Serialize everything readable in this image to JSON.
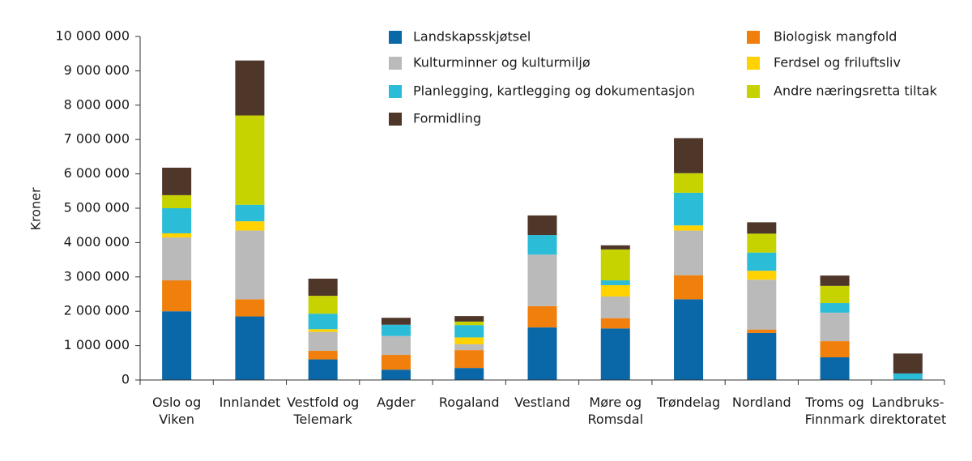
{
  "chart_data": {
    "type": "stacked_bar",
    "y_label": "Kroner",
    "categories": [
      "Oslo og\nViken",
      "Innlandet",
      "Vestfold og\nTelemark",
      "Agder",
      "Rogaland",
      "Vestland",
      "Møre og\nRomsdal",
      "Trøndelag",
      "Nordland",
      "Troms og\nFinnmark",
      "Landbruks-\ndirektoratet"
    ],
    "series": [
      {
        "name": "Landskapsskjøtsel",
        "color": "#0a68a8",
        "values": [
          2000000,
          1850000,
          600000,
          300000,
          350000,
          1530000,
          1500000,
          2350000,
          1370000,
          660000,
          0
        ]
      },
      {
        "name": "Biologisk mangfold",
        "color": "#f07f0c",
        "values": [
          900000,
          500000,
          250000,
          430000,
          520000,
          620000,
          300000,
          700000,
          100000,
          470000,
          0
        ]
      },
      {
        "name": "Kulturminner og kulturmiljø",
        "color": "#bababa",
        "values": [
          1250000,
          2000000,
          550000,
          550000,
          170000,
          1500000,
          630000,
          1300000,
          1450000,
          830000,
          0
        ]
      },
      {
        "name": "Ferdsel og friluftsliv",
        "color": "#ffd200",
        "values": [
          120000,
          270000,
          80000,
          0,
          200000,
          0,
          330000,
          150000,
          260000,
          0,
          0
        ]
      },
      {
        "name": "Planlegging, kartlegging og dokumentasjon",
        "color": "#2bbcd8",
        "values": [
          730000,
          480000,
          450000,
          330000,
          360000,
          570000,
          140000,
          950000,
          530000,
          280000,
          190000
        ]
      },
      {
        "name": "Andre næringsretta tiltak",
        "color": "#c6d300",
        "values": [
          380000,
          2600000,
          520000,
          0,
          100000,
          0,
          900000,
          570000,
          550000,
          500000,
          0
        ]
      },
      {
        "name": "Formidling",
        "color": "#4e3629",
        "values": [
          800000,
          1600000,
          500000,
          200000,
          160000,
          570000,
          120000,
          1020000,
          330000,
          300000,
          580000
        ]
      }
    ],
    "ylim": [
      0,
      10000000
    ],
    "yticks": [
      0,
      {
        "value": 1000000,
        "label": "1 000 000"
      },
      {
        "value": 2000000,
        "label": "2 000 000"
      },
      {
        "value": 3000000,
        "label": "3 000 000"
      },
      {
        "value": 4000000,
        "label": "4 000 000"
      },
      {
        "value": 5000000,
        "label": "5 000 000"
      },
      {
        "value": 6000000,
        "label": "6 000 000"
      },
      {
        "value": 7000000,
        "label": "7 000 000"
      },
      {
        "value": 8000000,
        "label": "8 000 000"
      },
      {
        "value": 9000000,
        "label": "9 000 000"
      },
      {
        "value": 10000000,
        "label": "10 000 000"
      }
    ],
    "grid": false
  }
}
